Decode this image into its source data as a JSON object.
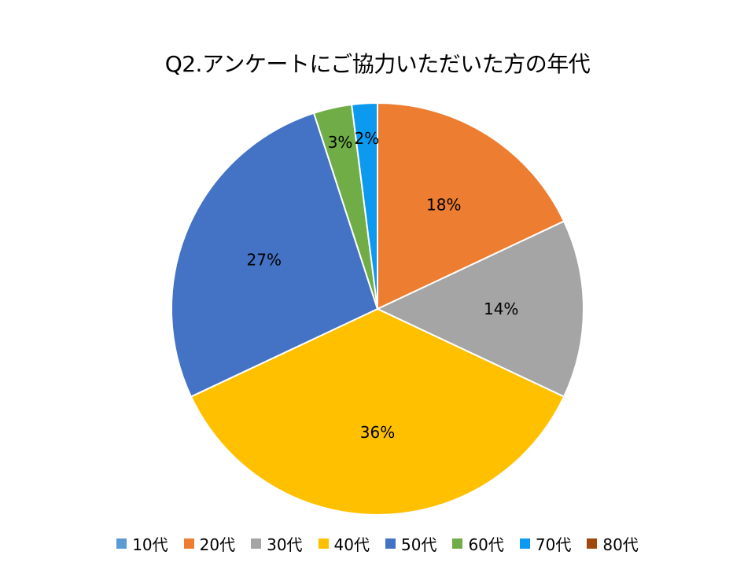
{
  "chart_data": {
    "type": "pie",
    "title": "Q2.アンケートにご協力いただいた方の年代",
    "categories": [
      "10代",
      "20代",
      "30代",
      "40代",
      "50代",
      "60代",
      "70代",
      "80代"
    ],
    "values": [
      0,
      18,
      14,
      36,
      27,
      3,
      2,
      0
    ],
    "data_labels": [
      "",
      "18%",
      "14%",
      "36%",
      "27%",
      "3%",
      "2%",
      ""
    ],
    "colors": [
      "#5B9BD5",
      "#ED7D31",
      "#A5A5A5",
      "#FFC000",
      "#4472C4",
      "#70AD47",
      "#0B9AF0",
      "#9E480E"
    ],
    "legend_position": "bottom",
    "start_angle": "12 o'clock",
    "direction": "clockwise"
  }
}
